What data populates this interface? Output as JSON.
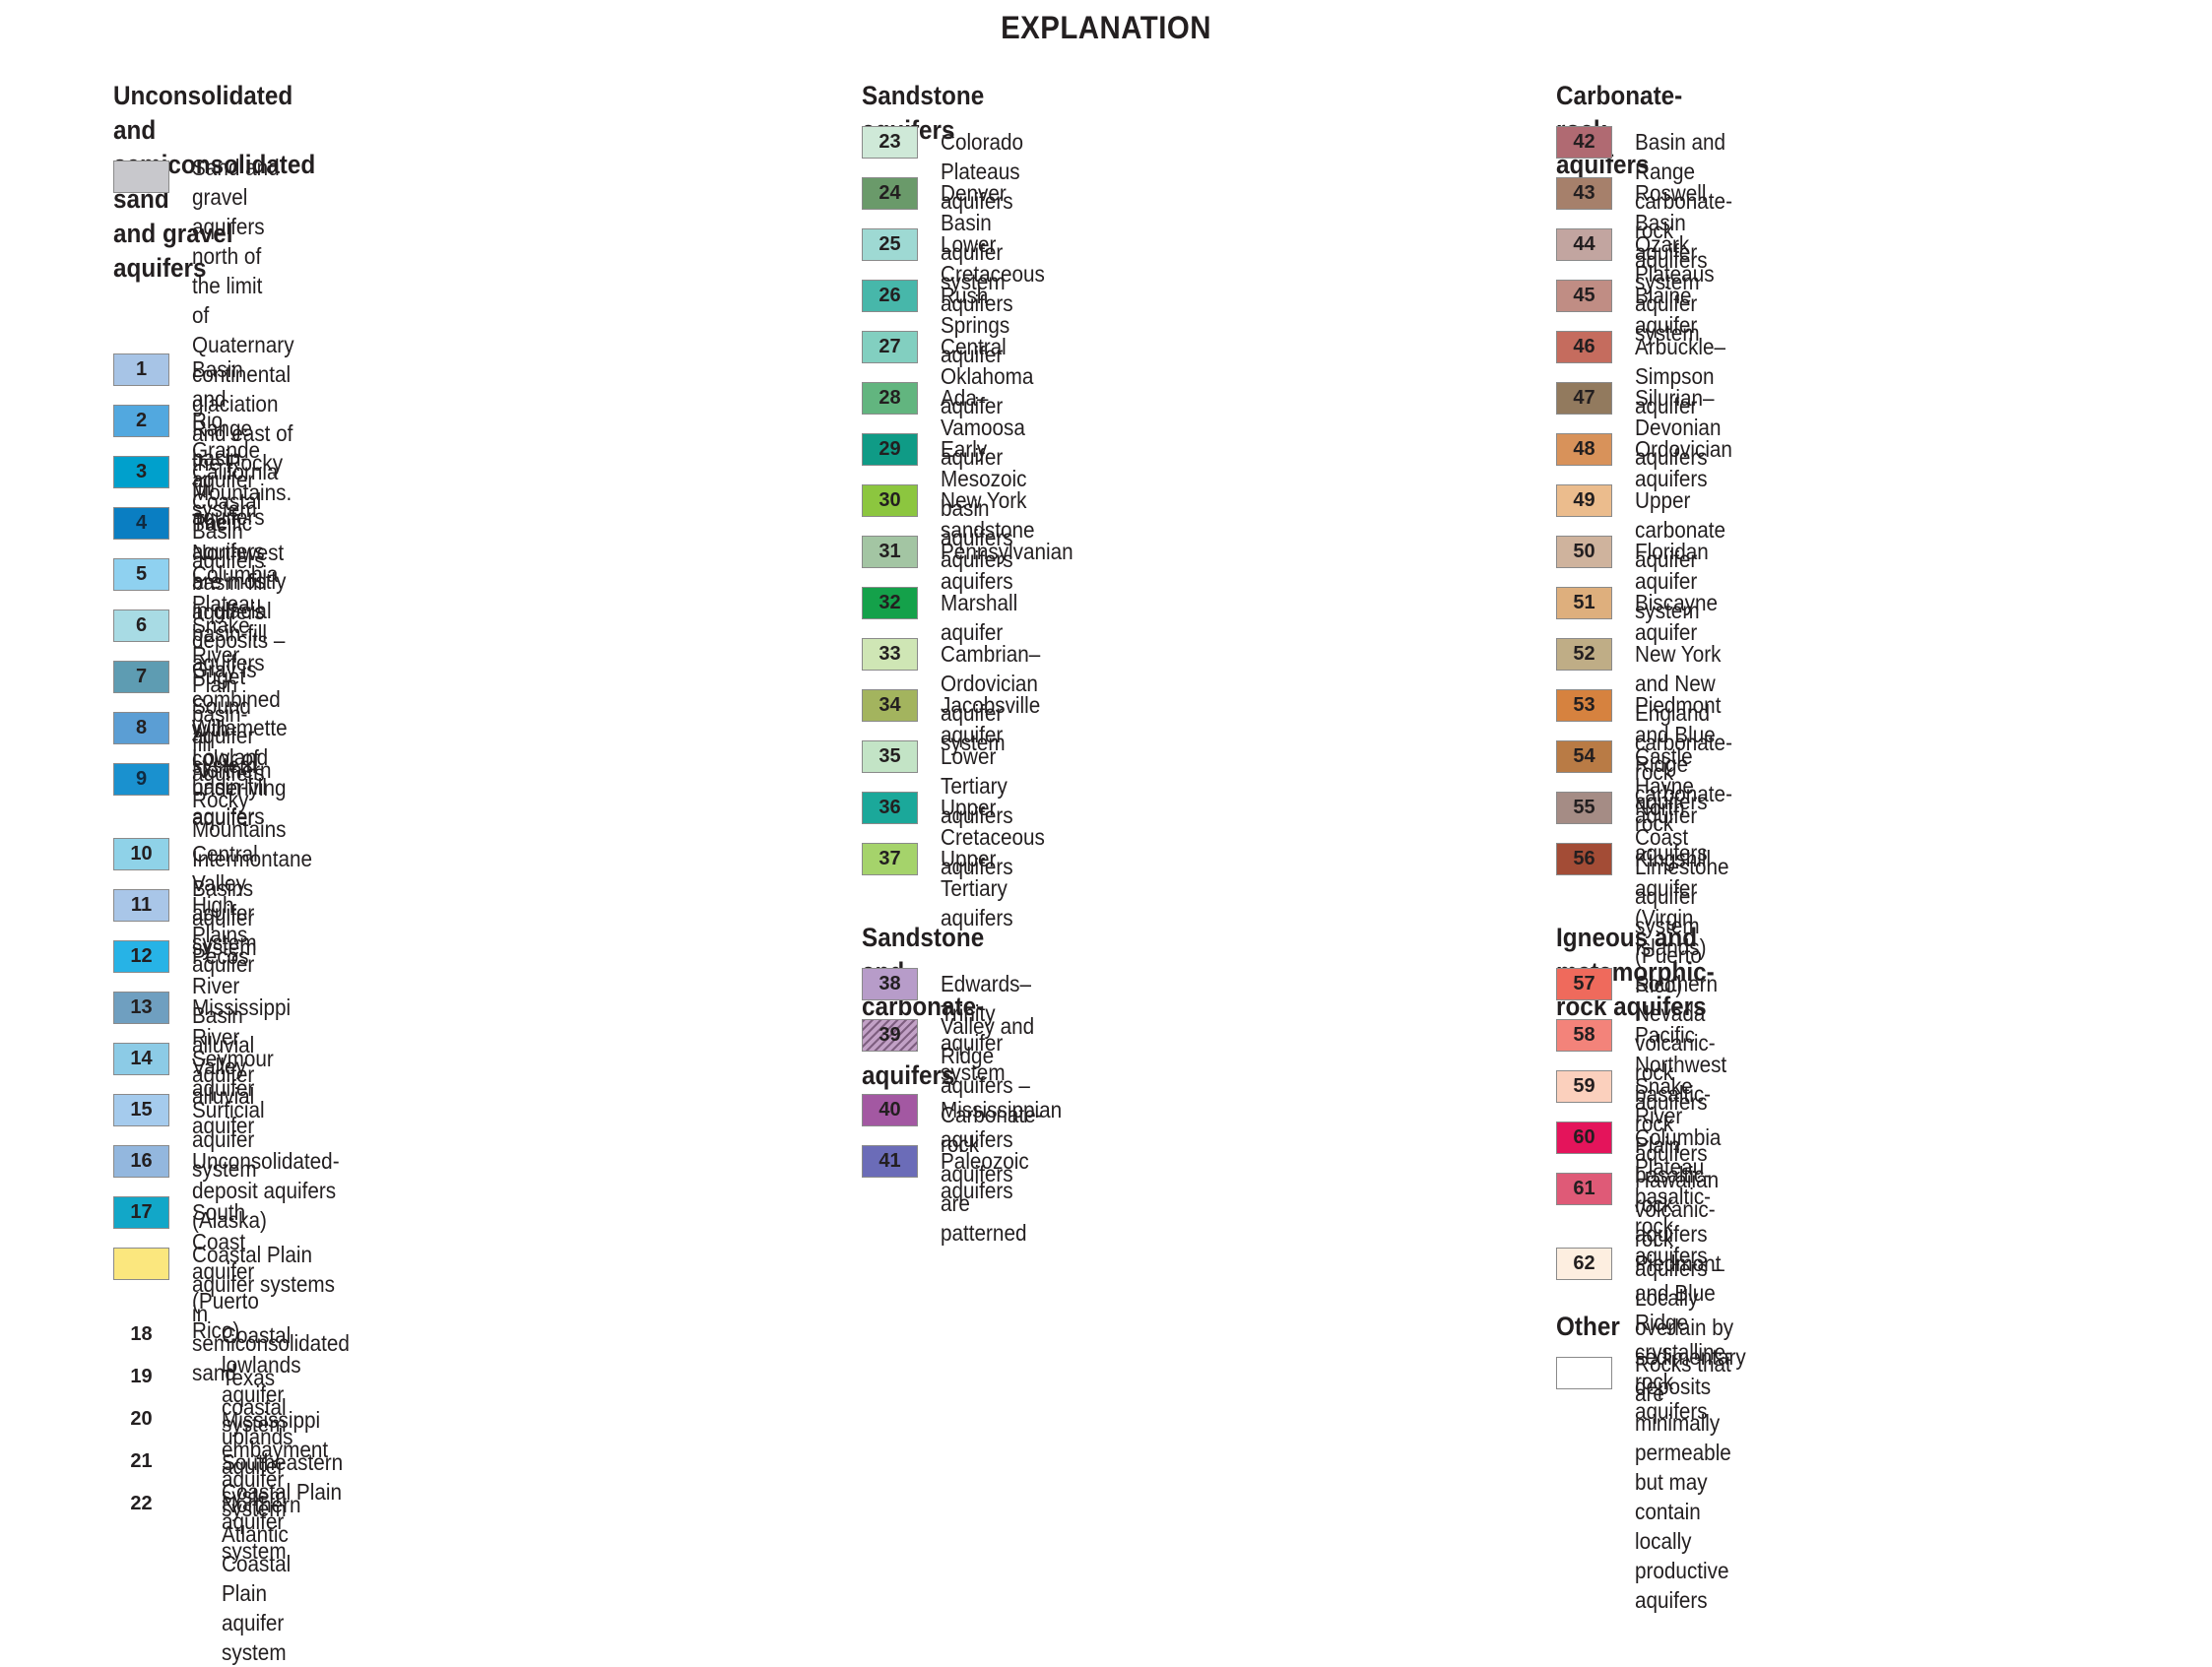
{
  "title": "EXPLANATION",
  "columns": [
    {
      "sections": [
        {
          "heading": "Unconsolidated and semiconsolidated sand\n and gravel aquifers",
          "items": [
            {
              "num": "",
              "color": "#c8c8cc",
              "label": "Sand and gravel aquifers north of the limit\n of Quaternary continental glaciation\n and east of the Rocky Mountains.\n The aquifers are mostly in glacial\n deposits – Gray is combined with\n color of underlying aquifer"
            },
            {
              "num": "1",
              "color": "#a7c4e6",
              "label": "Basin and Range basin-fill aquifers"
            },
            {
              "num": "2",
              "color": "#52a8df",
              "label": "Rio Grande aquifer system"
            },
            {
              "num": "3",
              "color": "#00a0cc",
              "label": "California Coastal Basin aquifers"
            },
            {
              "num": "4",
              "color": "#0a7ec2",
              "label": "Pacific Northwest basin-fill aquifers"
            },
            {
              "num": "5",
              "color": "#8fd1f0",
              "label": "Columbia Plateau basin-fill aquifers"
            },
            {
              "num": "6",
              "color": "#a8dbe4",
              "label": "Snake River Plain basin-fill aquifers"
            },
            {
              "num": "7",
              "color": "#5e9cb2",
              "label": "Puget Sound aquifer system"
            },
            {
              "num": "8",
              "color": "#5b9ed4",
              "label": "Willamette Lowland basin-fill aquifers"
            },
            {
              "num": "9",
              "color": "#1a91cf",
              "label": "Northern Rocky Mountains Intermontane\n Basins aquifer system"
            },
            {
              "num": "10",
              "color": "#8fd2e8",
              "label": "Central Valley aquifer system"
            },
            {
              "num": "11",
              "color": "#a9c6e8",
              "label": "High Plains aquifer"
            },
            {
              "num": "12",
              "color": "#27b3e6",
              "label": "Pecos River Basin alluvial aquifer"
            },
            {
              "num": "13",
              "color": "#6f9fc0",
              "label": "Mississippi River Valley alluvial aquifer"
            },
            {
              "num": "14",
              "color": "#8ccbe6",
              "label": "Seymour aquifer"
            },
            {
              "num": "15",
              "color": "#a5cbed",
              "label": "Surficial aquifer system"
            },
            {
              "num": "16",
              "color": "#93b7de",
              "label": "Unconsolidated-deposit aquifers (Alaska)"
            },
            {
              "num": "17",
              "color": "#12a7c8",
              "label": "South Coast aquifer (Puerto Rico)"
            },
            {
              "num": "",
              "color": "#fbe77e",
              "label": "Coastal Plain aquifer systems in\n semiconsolidated sand"
            }
          ],
          "subitems": [
            {
              "num": "18",
              "label": "Coastal lowlands aquifer system"
            },
            {
              "num": "19",
              "label": "Texas coastal uplands aquifer system"
            },
            {
              "num": "20",
              "label": "Mississippi embayment aquifer system"
            },
            {
              "num": "21",
              "label": "Southeastern Coastal Plain aquifer system"
            },
            {
              "num": "22",
              "label": "Northern Atlantic Coastal Plain aquifer system"
            }
          ]
        }
      ]
    },
    {
      "sections": [
        {
          "heading": "Sandstone aquifers",
          "items": [
            {
              "num": "23",
              "color": "#cfe9d8",
              "label": "Colorado Plateaus aquifers"
            },
            {
              "num": "24",
              "color": "#6a9a6a",
              "label": "Denver Basin aquifer system"
            },
            {
              "num": "25",
              "color": "#9ed9d3",
              "label": "Lower Cretaceous aquifers"
            },
            {
              "num": "26",
              "color": "#47b7aa",
              "label": "Rush Springs aquifer"
            },
            {
              "num": "27",
              "color": "#82cfc0",
              "label": "Central Oklahoma aquifer"
            },
            {
              "num": "28",
              "color": "#62b57f",
              "label": "Ada–Vamoosa aquifer"
            },
            {
              "num": "29",
              "color": "#0f9b86",
              "label": "Early Mesozoic basin aquifers"
            },
            {
              "num": "30",
              "color": "#8cc63f",
              "label": "New York sandstone aquifers"
            },
            {
              "num": "31",
              "color": "#a3c5a3",
              "label": "Pennsylvanian aquifers"
            },
            {
              "num": "32",
              "color": "#14a14a",
              "label": "Marshall aquifer"
            },
            {
              "num": "33",
              "color": "#cfe6b5",
              "label": "Cambrian–Ordovician aquifer system"
            },
            {
              "num": "34",
              "color": "#a3b45e",
              "label": "Jacobsville aquifer"
            },
            {
              "num": "35",
              "color": "#c3e4c6",
              "label": "Lower Tertiary aquifers"
            },
            {
              "num": "36",
              "color": "#1ba89a",
              "label": "Upper Cretaceous aquifers"
            },
            {
              "num": "37",
              "color": "#a5d36b",
              "label": "Upper Tertiary aquifers"
            }
          ]
        },
        {
          "heading": "Sandstone and carbonate-rock aquifers",
          "items": [
            {
              "num": "38",
              "color": "#b79cc9",
              "label": "Edwards–Trinity aquifer system"
            },
            {
              "num": "39",
              "color": "#c2a1c6",
              "hatch": "patterned",
              "label": "Valley and Ridge aquifers – Carbonate-rock\n aquifers are patterned"
            },
            {
              "num": "40",
              "color": "#a358a2",
              "label": "Mississippian aquifers"
            },
            {
              "num": "41",
              "color": "#6b6cb8",
              "label": "Paleozoic aquifers"
            }
          ]
        }
      ]
    },
    {
      "sections": [
        {
          "heading": "Carbonate-rock aquifers",
          "items": [
            {
              "num": "42",
              "color": "#b06a72",
              "label": "Basin and Range carbonate-rock aquifers"
            },
            {
              "num": "43",
              "color": "#a6806b",
              "label": "Roswell Basin aquifer system"
            },
            {
              "num": "44",
              "color": "#c2a5a0",
              "label": "Ozark Plateaus aquifer system"
            },
            {
              "num": "45",
              "color": "#c08d84",
              "label": "Blaine aquifer"
            },
            {
              "num": "46",
              "color": "#c56c5e",
              "label": "Arbuckle–Simpson aquifer"
            },
            {
              "num": "47",
              "color": "#927a5e",
              "label": "Silurian–Devonian aquifers"
            },
            {
              "num": "48",
              "color": "#d8925a",
              "label": "Ordovician aquifers"
            },
            {
              "num": "49",
              "color": "#ebbc8d",
              "label": "Upper carbonate aquifer"
            },
            {
              "num": "50",
              "color": "#cfb39d",
              "label": "Floridan aquifer system"
            },
            {
              "num": "51",
              "color": "#deaf7d",
              "label": "Biscayne aquifer"
            },
            {
              "num": "52",
              "color": "#bfad86",
              "label": "New York and New England carbonate-rock aquifers"
            },
            {
              "num": "53",
              "color": "#d6823f",
              "label": "Piedmont and Blue Ridge carbonate-rock aquifers"
            },
            {
              "num": "54",
              "color": "#b97b45",
              "label": "Castle Hayne aquifer"
            },
            {
              "num": "55",
              "color": "#a58c85",
              "label": "North Coast Limestone aquifer system (Puerto Rico)"
            },
            {
              "num": "56",
              "color": "#a34c36",
              "label": "Kingshill aquifer (Virgin Islands)"
            }
          ]
        },
        {
          "heading": "Igneous and metamorphic-rock aquifers",
          "items": [
            {
              "num": "57",
              "color": "#ef6a5c",
              "label": "Southern Nevada volcanic-rock aquifers"
            },
            {
              "num": "58",
              "color": "#f3837a",
              "label": "Pacific Northwest basaltic-rock aquifers"
            },
            {
              "num": "59",
              "color": "#fbd0bd",
              "label": "Snake River Plain basaltic-rock aquifers"
            },
            {
              "num": "60",
              "color": "#e4145b",
              "label": "Columbia Plateau basaltic-rock aquifers"
            },
            {
              "num": "61",
              "color": "#df5a77",
              "label": "Hawaiian volcanic-rock aquifers – Locally\n overlain by sedimentary deposits"
            },
            {
              "num": "62",
              "color": "#fdeee0",
              "label": "Piedmont and Blue Ridge crystalline-rock aquifers"
            }
          ]
        },
        {
          "heading": "Other",
          "items": [
            {
              "num": "",
              "color": "#ffffff",
              "label": "Rocks that are minimally permeable\n but may contain locally productive\n aquifers"
            }
          ]
        }
      ]
    }
  ]
}
